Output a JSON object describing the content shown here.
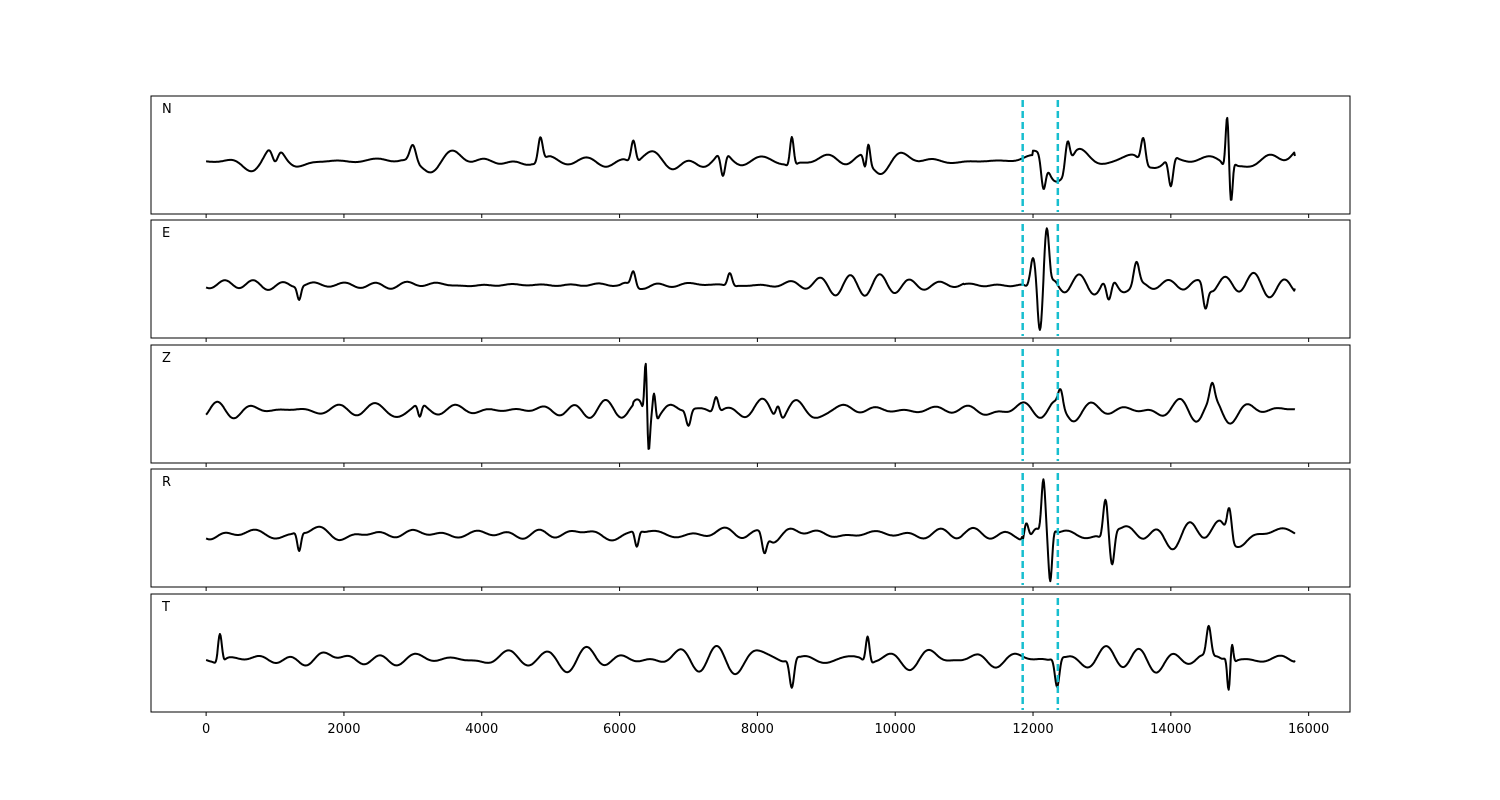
{
  "chart_data": {
    "type": "line",
    "title": "",
    "xlabel": "",
    "ylabel": "",
    "xlim": [
      -800,
      16600
    ],
    "xticks": [
      0,
      2000,
      4000,
      6000,
      8000,
      10000,
      12000,
      14000,
      16000
    ],
    "n_samples": 15800,
    "grid": false,
    "pick_color": "#17becf",
    "trace_color": "#000000",
    "picks": [
      11850,
      12360
    ],
    "series": [
      {
        "name": "N",
        "bursts": [
          {
            "x": 1000,
            "amp": -0.3,
            "w": 80
          },
          {
            "x": 3000,
            "amp": 0.3,
            "w": 80
          },
          {
            "x": 4850,
            "amp": 0.45,
            "w": 60
          },
          {
            "x": 6200,
            "amp": 0.42,
            "w": 60
          },
          {
            "x": 7500,
            "amp": -0.45,
            "w": 60
          },
          {
            "x": 8500,
            "amp": 0.55,
            "w": 50
          },
          {
            "x": 9600,
            "amp": 0.62,
            "w": 50
          },
          {
            "x": 9580,
            "amp": -0.5,
            "w": 50
          },
          {
            "x": 12150,
            "amp": -0.55,
            "w": 60
          },
          {
            "x": 12500,
            "amp": 0.5,
            "w": 60
          },
          {
            "x": 13600,
            "amp": 0.48,
            "w": 60
          },
          {
            "x": 14000,
            "amp": -0.55,
            "w": 60
          },
          {
            "x": 14820,
            "amp": 1.0,
            "w": 45
          },
          {
            "x": 14870,
            "amp": -0.75,
            "w": 45
          }
        ],
        "noise": [
          {
            "from": 0,
            "to": 11000,
            "amp": 0.18
          },
          {
            "from": 11000,
            "to": 12000,
            "amp": 0.16
          },
          {
            "from": 12000,
            "to": 15800,
            "amp": 0.28
          }
        ]
      },
      {
        "name": "E",
        "bursts": [
          {
            "x": 1350,
            "amp": -0.25,
            "w": 50
          },
          {
            "x": 6200,
            "amp": 0.28,
            "w": 60
          },
          {
            "x": 7600,
            "amp": 0.25,
            "w": 60
          },
          {
            "x": 12000,
            "amp": 0.6,
            "w": 70
          },
          {
            "x": 12100,
            "amp": -0.85,
            "w": 60
          },
          {
            "x": 12200,
            "amp": 1.0,
            "w": 60
          },
          {
            "x": 13500,
            "amp": 0.4,
            "w": 70
          },
          {
            "x": 13100,
            "amp": -0.45,
            "w": 70
          },
          {
            "x": 14500,
            "amp": -0.42,
            "w": 60
          }
        ],
        "noise": [
          {
            "from": 0,
            "to": 6000,
            "amp": 0.08
          },
          {
            "from": 6000,
            "to": 11000,
            "amp": 0.16
          },
          {
            "from": 11000,
            "to": 11950,
            "amp": 0.08
          },
          {
            "from": 11950,
            "to": 15800,
            "amp": 0.28
          }
        ]
      },
      {
        "name": "Z",
        "bursts": [
          {
            "x": 6380,
            "amp": 1.0,
            "w": 35
          },
          {
            "x": 6420,
            "amp": -0.7,
            "w": 35
          },
          {
            "x": 6500,
            "amp": 0.55,
            "w": 40
          },
          {
            "x": 3100,
            "amp": -0.25,
            "w": 50
          },
          {
            "x": 7000,
            "amp": -0.3,
            "w": 60
          },
          {
            "x": 7400,
            "amp": 0.3,
            "w": 60
          },
          {
            "x": 8300,
            "amp": 0.28,
            "w": 60
          },
          {
            "x": 12400,
            "amp": 0.28,
            "w": 60
          },
          {
            "x": 14600,
            "amp": 0.28,
            "w": 60
          }
        ],
        "noise": [
          {
            "from": 0,
            "to": 6200,
            "amp": 0.15
          },
          {
            "from": 6200,
            "to": 15800,
            "amp": 0.22
          }
        ]
      },
      {
        "name": "R",
        "bursts": [
          {
            "x": 1350,
            "amp": -0.35,
            "w": 50
          },
          {
            "x": 6250,
            "amp": -0.3,
            "w": 50
          },
          {
            "x": 8100,
            "amp": -0.35,
            "w": 60
          },
          {
            "x": 12150,
            "amp": 1.0,
            "w": 50
          },
          {
            "x": 12250,
            "amp": -1.0,
            "w": 50
          },
          {
            "x": 11900,
            "amp": 0.38,
            "w": 60
          },
          {
            "x": 13050,
            "amp": 0.72,
            "w": 60
          },
          {
            "x": 13150,
            "amp": -0.6,
            "w": 60
          },
          {
            "x": 14850,
            "amp": 0.55,
            "w": 60
          }
        ],
        "noise": [
          {
            "from": 0,
            "to": 11000,
            "amp": 0.15
          },
          {
            "from": 11000,
            "to": 11850,
            "amp": 0.12
          },
          {
            "from": 11850,
            "to": 15800,
            "amp": 0.28
          }
        ]
      },
      {
        "name": "T",
        "bursts": [
          {
            "x": 200,
            "amp": 0.55,
            "w": 50
          },
          {
            "x": 8500,
            "amp": -0.55,
            "w": 60
          },
          {
            "x": 9600,
            "amp": 0.5,
            "w": 50
          },
          {
            "x": 12350,
            "amp": -0.55,
            "w": 60
          },
          {
            "x": 14550,
            "amp": 0.55,
            "w": 60
          },
          {
            "x": 14850,
            "amp": -1.0,
            "w": 45
          },
          {
            "x": 14870,
            "amp": 0.75,
            "w": 45
          }
        ],
        "noise": [
          {
            "from": 0,
            "to": 11000,
            "amp": 0.2
          },
          {
            "from": 11000,
            "to": 12000,
            "amp": 0.18
          },
          {
            "from": 12000,
            "to": 15800,
            "amp": 0.28
          }
        ]
      }
    ]
  }
}
